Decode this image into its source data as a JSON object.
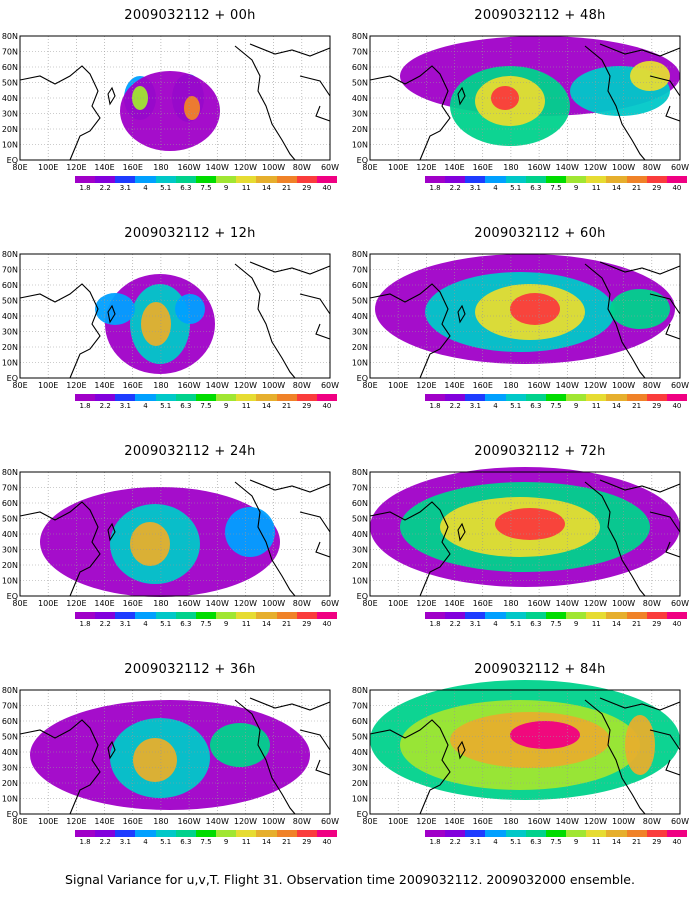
{
  "panels": [
    {
      "title": "2009032112 + 00h"
    },
    {
      "title": "2009032112 + 48h"
    },
    {
      "title": "2009032112 + 12h"
    },
    {
      "title": "2009032112 + 60h"
    },
    {
      "title": "2009032112 + 24h"
    },
    {
      "title": "2009032112 + 72h"
    },
    {
      "title": "2009032112 + 36h"
    },
    {
      "title": "2009032112 + 84h"
    }
  ],
  "axes": {
    "x_ticks": [
      "80E",
      "100E",
      "120E",
      "140E",
      "160E",
      "180",
      "160W",
      "140W",
      "120W",
      "100W",
      "80W",
      "60W"
    ],
    "y_ticks": [
      "80N",
      "70N",
      "60N",
      "50N",
      "40N",
      "30N",
      "20N",
      "10N",
      "EQ"
    ]
  },
  "colorbar": {
    "labels": [
      "1.8",
      "2.2",
      "3.1",
      "4",
      "5.1",
      "6.3",
      "7.5",
      "9",
      "11",
      "14",
      "21",
      "29",
      "40"
    ],
    "colors": [
      "#a000c8",
      "#8200dc",
      "#1e3cff",
      "#00a0ff",
      "#00c8c8",
      "#00d28c",
      "#00dc00",
      "#a0e632",
      "#e6dc32",
      "#e6af2d",
      "#f08228",
      "#fa3c3c",
      "#f00082"
    ]
  },
  "footer": "Signal Variance for u,v,T. Flight 31. Observation time 2009032112. 2009032000 ensemble."
}
